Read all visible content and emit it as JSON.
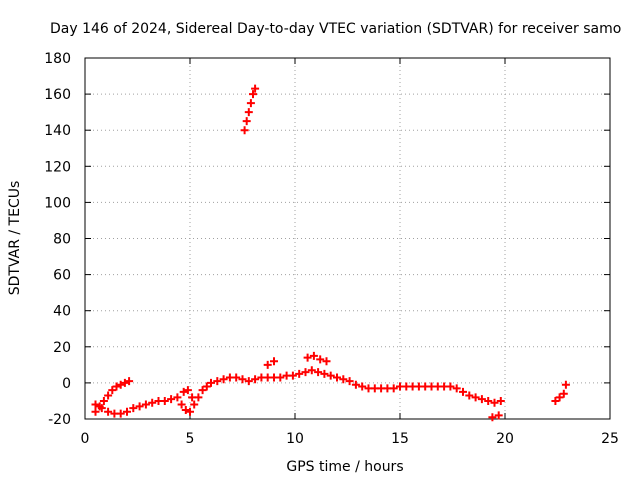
{
  "chart_data": {
    "type": "scatter",
    "title": "Day 146 of 2024, Sidereal Day-to-day VTEC variation (SDTVAR) for receiver samo",
    "xlabel": "GPS time / hours",
    "ylabel": "SDTVAR / TECUs",
    "xlim": [
      0,
      25
    ],
    "ylim": [
      -20,
      180
    ],
    "xticks": [
      0,
      5,
      10,
      15,
      20,
      25
    ],
    "yticks": [
      -20,
      0,
      20,
      40,
      60,
      80,
      100,
      120,
      140,
      160,
      180
    ],
    "grid": true,
    "marker": "+",
    "color": "#ff0000",
    "series": [
      {
        "name": "SDTVAR",
        "x": [
          0.5,
          0.7,
          0.9,
          1.1,
          1.3,
          1.5,
          1.7,
          1.9,
          2.1,
          0.5,
          0.8,
          1.1,
          1.4,
          1.7,
          2.0,
          2.3,
          2.6,
          2.9,
          3.2,
          3.5,
          3.8,
          4.1,
          4.4,
          4.6,
          4.8,
          5.0,
          5.2,
          5.4,
          5.6,
          5.8,
          6.0,
          6.3,
          6.6,
          6.9,
          7.2,
          7.5,
          7.8,
          8.1,
          8.4,
          8.7,
          9.0,
          9.3,
          9.6,
          9.9,
          10.2,
          10.5,
          10.8,
          11.1,
          11.4,
          11.7,
          12.0,
          12.3,
          12.6,
          12.9,
          13.2,
          13.5,
          13.8,
          14.1,
          14.4,
          14.7,
          15.0,
          15.3,
          15.6,
          15.9,
          16.2,
          16.5,
          16.8,
          17.1,
          17.4,
          17.7,
          18.0,
          18.3,
          18.6,
          18.9,
          19.2,
          19.5,
          19.8,
          19.4,
          19.7,
          22.4,
          22.6,
          22.8,
          22.9,
          7.6,
          7.7,
          7.8,
          7.9,
          8.0,
          8.1,
          4.7,
          4.9,
          5.1,
          8.7,
          9.0,
          10.6,
          10.9,
          11.2,
          11.5
        ],
        "y": [
          -16,
          -13,
          -10,
          -7,
          -4,
          -2,
          -1,
          0,
          1,
          -12,
          -14,
          -16,
          -17,
          -17,
          -16,
          -14,
          -13,
          -12,
          -11,
          -10,
          -10,
          -9,
          -8,
          -12,
          -15,
          -16,
          -12,
          -8,
          -4,
          -2,
          0,
          1,
          2,
          3,
          3,
          2,
          1,
          2,
          3,
          3,
          3,
          3,
          4,
          4,
          5,
          6,
          7,
          6,
          5,
          4,
          3,
          2,
          1,
          -1,
          -2,
          -3,
          -3,
          -3,
          -3,
          -3,
          -2,
          -2,
          -2,
          -2,
          -2,
          -2,
          -2,
          -2,
          -2,
          -3,
          -5,
          -7,
          -8,
          -9,
          -10,
          -11,
          -10,
          -19,
          -18,
          -10,
          -8,
          -6,
          -1,
          140,
          145,
          150,
          155,
          160,
          163,
          -5,
          -4,
          -8,
          10,
          12,
          14,
          15,
          13,
          12
        ]
      }
    ]
  }
}
